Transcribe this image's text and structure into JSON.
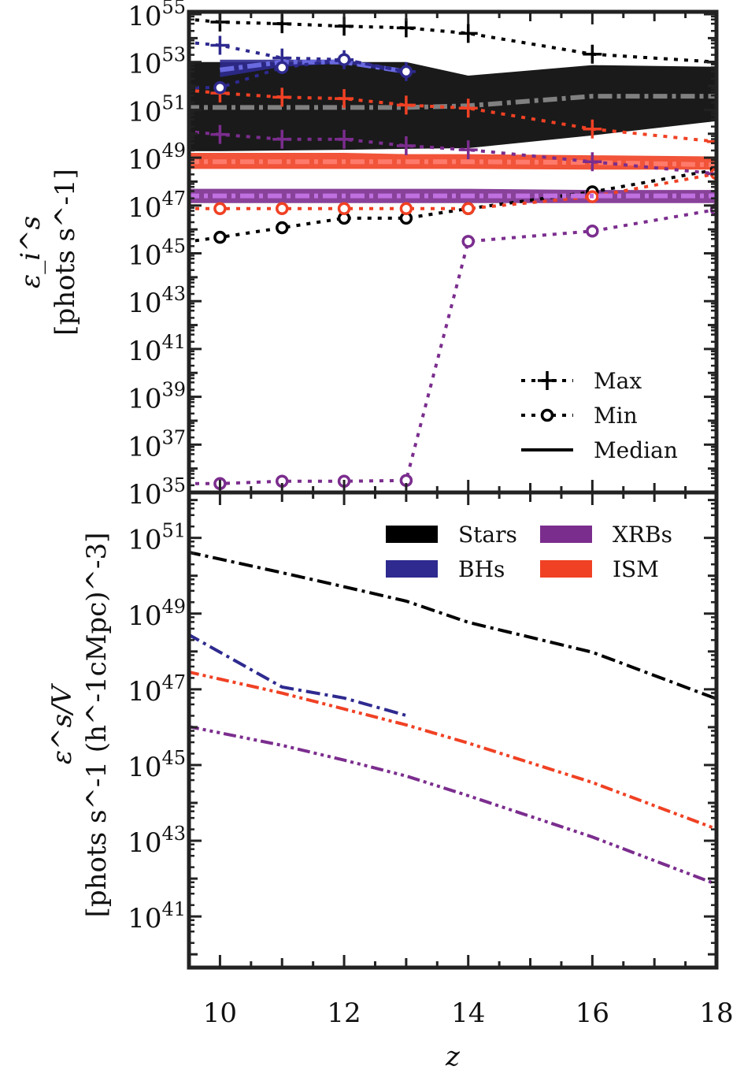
{
  "chart_data": [
    {
      "type": "line",
      "panel": "top",
      "ylabel": [
        "ε_i^s",
        "[phots s^-1]"
      ],
      "yscale": "log",
      "ylim": [
        1e+35,
        1e+55
      ],
      "xlim": [
        9.5,
        18
      ],
      "y_tick_labels": [
        "10^35",
        "10^37",
        "10^39",
        "10^41",
        "10^43",
        "10^45",
        "10^47",
        "10^49",
        "10^51",
        "10^53",
        "10^55"
      ],
      "legend": {
        "placement": "lower-right",
        "entries": [
          "Max",
          "Min",
          "Median"
        ]
      },
      "x": [
        10,
        11,
        12,
        13,
        14,
        16,
        18
      ],
      "series": [
        {
          "source": "Stars",
          "color": "#000000",
          "median_color": "#808080",
          "log10_max": [
            54.67,
            54.6,
            54.5,
            54.43,
            54.2,
            53.33,
            53.0
          ],
          "log10_min": [
            45.67,
            46.07,
            46.47,
            46.47,
            46.87,
            47.57,
            48.5
          ],
          "log10_median": [
            51.1,
            51.1,
            51.1,
            51.1,
            51.17,
            51.57,
            51.57
          ],
          "log10_band_upper": [
            53.0,
            53.0,
            53.0,
            53.0,
            52.43,
            52.87,
            52.8
          ],
          "log10_band_lower": [
            49.27,
            49.3,
            49.33,
            49.37,
            49.4,
            49.93,
            50.53
          ]
        },
        {
          "source": "BHs",
          "color": "#2e2a8f",
          "median_color": "#6a6ae0",
          "log10_max": [
            53.7,
            53.17,
            53.1,
            52.6,
            null,
            null,
            null
          ],
          "log10_min": [
            51.93,
            52.77,
            53.1,
            52.6,
            null,
            null,
            null
          ],
          "log10_median": [
            52.67,
            53.0,
            53.0,
            52.6,
            null,
            null,
            null
          ],
          "log10_band_upper": [
            53.1,
            53.1,
            53.1,
            52.7,
            null,
            null,
            null
          ],
          "log10_band_lower": [
            52.37,
            52.8,
            52.95,
            52.5,
            null,
            null,
            null
          ]
        },
        {
          "source": "ISM",
          "color": "#f04124",
          "median_color": "#ff7a6a",
          "log10_max": [
            51.7,
            51.53,
            51.47,
            51.2,
            51.07,
            50.2,
            49.67
          ],
          "log10_min": [
            46.87,
            46.87,
            46.87,
            46.87,
            46.87,
            47.37,
            48.33
          ],
          "log10_median": [
            48.83,
            48.83,
            48.83,
            48.83,
            48.83,
            48.8,
            48.7
          ],
          "log10_band_upper": [
            49.2,
            49.2,
            49.2,
            49.15,
            49.15,
            49.1,
            49.05
          ],
          "log10_band_lower": [
            48.53,
            48.53,
            48.53,
            48.53,
            48.53,
            48.5,
            48.5
          ]
        },
        {
          "source": "XRBs",
          "color": "#7b2d8e",
          "median_color": "#c070e0",
          "log10_max": [
            49.97,
            49.77,
            49.77,
            49.5,
            49.33,
            48.83,
            48.33
          ],
          "log10_min": [
            35.37,
            35.47,
            35.47,
            35.5,
            45.5,
            45.93,
            46.83
          ],
          "log10_median": [
            47.4,
            47.4,
            47.4,
            47.4,
            47.4,
            47.4,
            47.4
          ],
          "log10_band_upper": [
            47.7,
            47.7,
            47.7,
            47.7,
            47.7,
            47.65,
            47.65
          ],
          "log10_band_lower": [
            47.1,
            47.1,
            47.1,
            47.1,
            47.1,
            47.1,
            47.1
          ]
        }
      ]
    },
    {
      "type": "line",
      "panel": "bottom",
      "ylabel": [
        "ε^s/V",
        "[phots s^-1 (h^-1cMpc)^-3]"
      ],
      "xlabel": "z",
      "yscale": "log",
      "ylim": [
        4.5e+39,
        1.6e+52
      ],
      "xlim": [
        9.5,
        18
      ],
      "x_tick_labels": [
        "10",
        "12",
        "14",
        "16",
        "18"
      ],
      "y_tick_labels": [
        "10^41",
        "10^43",
        "10^45",
        "10^47",
        "10^49",
        "10^51"
      ],
      "legend": {
        "placement": "top-right",
        "entries": [
          "Stars",
          "BHs",
          "XRBs",
          "ISM"
        ]
      },
      "x": [
        10,
        11,
        12,
        13,
        14,
        16,
        18
      ],
      "series": [
        {
          "name": "Stars",
          "color": "#000000",
          "dash": "18 6 4 6",
          "log10_values": [
            50.44,
            50.08,
            49.71,
            49.33,
            48.77,
            47.98,
            46.75
          ]
        },
        {
          "name": "BHs",
          "color": "#2e2a8f",
          "dash": "18 6 4 6",
          "log10_values": [
            47.98,
            47.06,
            46.77,
            46.31,
            null,
            null,
            null
          ]
        },
        {
          "name": "ISM",
          "color": "#f04124",
          "dash": "16 5 4 5 4 5",
          "log10_values": [
            47.27,
            46.9,
            46.48,
            46.06,
            45.58,
            44.54,
            43.31
          ]
        },
        {
          "name": "XRBs",
          "color": "#7b2d8e",
          "dash": "16 5 4 5 4 5 4 5",
          "log10_values": [
            45.85,
            45.52,
            45.13,
            44.71,
            44.19,
            43.1,
            41.85
          ]
        }
      ]
    }
  ]
}
